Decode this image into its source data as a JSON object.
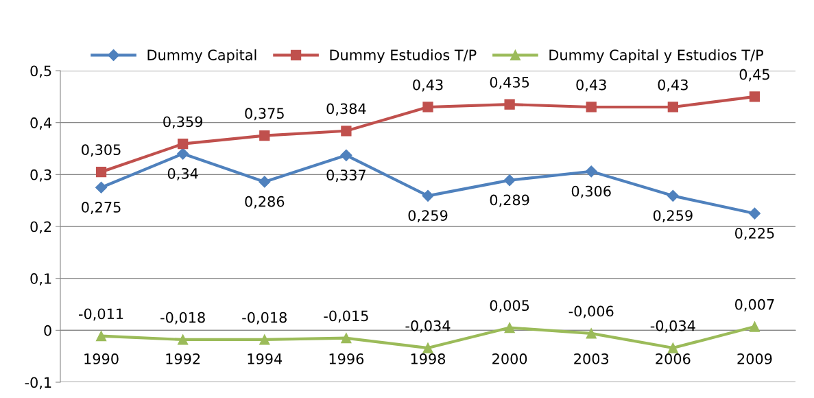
{
  "chart_data": {
    "type": "line",
    "categories": [
      "1990",
      "1992",
      "1994",
      "1996",
      "1998",
      "2000",
      "2003",
      "2006",
      "2009"
    ],
    "series": [
      {
        "name": "Dummy Capital",
        "color": "#4f81bd",
        "marker": "diamond",
        "values": [
          0.275,
          0.34,
          0.286,
          0.337,
          0.259,
          0.289,
          0.306,
          0.259,
          0.225
        ],
        "value_labels": [
          "0,275",
          "0,34",
          "0,286",
          "0,337",
          "0,259",
          "0,289",
          "0,306",
          "0,259",
          "0,225"
        ]
      },
      {
        "name": "Dummy Estudios T/P",
        "color": "#c0504d",
        "marker": "square",
        "values": [
          0.305,
          0.359,
          0.375,
          0.384,
          0.43,
          0.435,
          0.43,
          0.43,
          0.45
        ],
        "value_labels": [
          "0,305",
          "0,359",
          "0,375",
          "0,384",
          "0,43",
          "0,435",
          "0,43",
          "0,43",
          "0,45"
        ]
      },
      {
        "name": "Dummy Capital y Estudios T/P",
        "color": "#9bbb59",
        "marker": "triangle",
        "values": [
          -0.011,
          -0.018,
          -0.018,
          -0.015,
          -0.034,
          0.005,
          -0.006,
          -0.034,
          0.007
        ],
        "value_labels": [
          "-0,011",
          "-0,018",
          "-0,018",
          "-0,015",
          "-0,034",
          "0,005",
          "-0,006",
          "-0,034",
          "0,007"
        ]
      }
    ],
    "ylim": [
      -0.1,
      0.5
    ],
    "yticks": [
      {
        "value": -0.1,
        "label": "-0,1"
      },
      {
        "value": 0,
        "label": "0"
      },
      {
        "value": 0.1,
        "label": "0,1"
      },
      {
        "value": 0.2,
        "label": "0,2"
      },
      {
        "value": 0.3,
        "label": "0,3"
      },
      {
        "value": 0.4,
        "label": "0,4"
      },
      {
        "value": 0.5,
        "label": "0,5"
      }
    ],
    "grid": "y",
    "legend": "top",
    "line_style": "solid"
  }
}
